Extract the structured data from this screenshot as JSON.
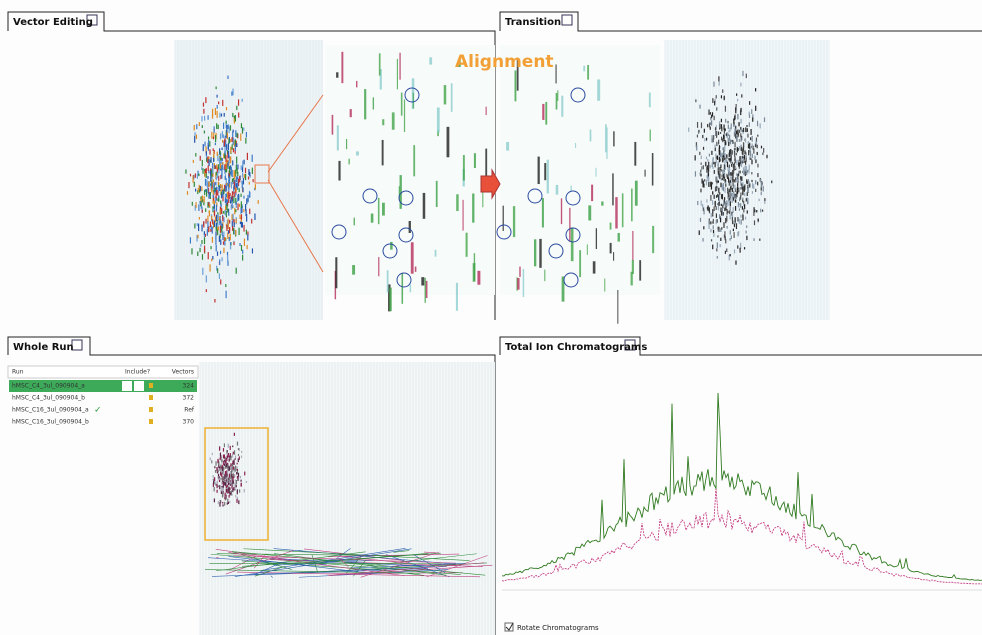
{
  "panels": {
    "vector_editing": {
      "title": "Vector Editing",
      "annotation": "Alignment"
    },
    "transition": {
      "title": "Transition"
    },
    "whole_run": {
      "title": "Whole Run",
      "table": {
        "header": [
          "Run",
          "Include?",
          "Vectors"
        ],
        "rows": [
          {
            "run": "hMSC_C4_3ul_090904_a",
            "vectors": 324
          },
          {
            "run": "hMSC_C4_3ul_090904_b",
            "vectors": 372
          },
          {
            "run": "hMSC_C16_3ul_090904_a",
            "include": "✓",
            "vectors": "Ref"
          },
          {
            "run": "hMSC_C16_3ul_090904_b",
            "vectors": 370
          }
        ]
      }
    },
    "tic": {
      "title": "Total Ion Chromatograms",
      "checkbox": "Rotate Chromatograms"
    }
  }
}
